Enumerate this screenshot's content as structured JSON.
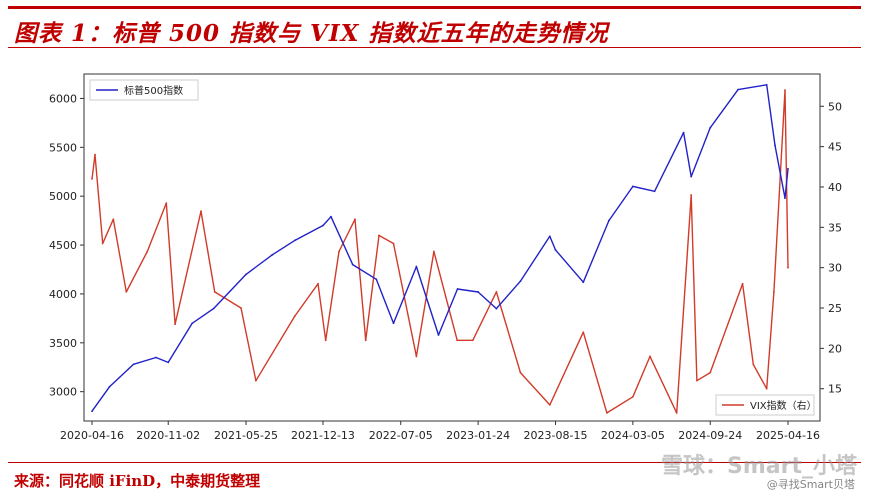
{
  "header": {
    "title": "图表 1：标普 500 指数与 VIX 指数近五年的走势情况"
  },
  "footer": {
    "source": "来源：同花顺 iFinD，中泰期货整理",
    "watermark": "雪球：Smart_小塔",
    "watermark_sub": "@寻找Smart贝塔"
  },
  "colors": {
    "accent": "#c00000",
    "sp500": "#2222c8",
    "vix": "#d13b2a"
  },
  "chart_data": {
    "type": "line",
    "title": "",
    "xlabel": "",
    "ylabel_left": "",
    "ylabel_right": "",
    "x_ticks": [
      "2020-04-16",
      "2020-11-02",
      "2021-05-25",
      "2021-12-13",
      "2022-07-05",
      "2023-01-24",
      "2023-08-15",
      "2024-03-05",
      "2024-09-24",
      "2025-04-16"
    ],
    "y_left": {
      "lim": [
        2700,
        6250
      ],
      "ticks": [
        "3000",
        "3500",
        "4000",
        "4500",
        "5000",
        "5500",
        "6000"
      ]
    },
    "y_right": {
      "lim": [
        11,
        54
      ],
      "ticks": [
        "15",
        "20",
        "25",
        "30",
        "35",
        "40",
        "45",
        "50"
      ]
    },
    "legend": {
      "left_series": "top-left",
      "right_series": "bottom-right"
    },
    "grid": false,
    "series": [
      {
        "name": "标普500指数",
        "axis": "left",
        "x": [
          "2020-04-16",
          "2020-06-01",
          "2020-08-03",
          "2020-10-01",
          "2020-11-02",
          "2021-01-04",
          "2021-03-01",
          "2021-05-25",
          "2021-08-02",
          "2021-10-01",
          "2021-12-13",
          "2022-01-03",
          "2022-03-01",
          "2022-05-02",
          "2022-06-16",
          "2022-08-15",
          "2022-10-12",
          "2022-12-01",
          "2023-01-24",
          "2023-03-13",
          "2023-05-15",
          "2023-07-31",
          "2023-08-15",
          "2023-10-27",
          "2024-01-02",
          "2024-03-05",
          "2024-05-01",
          "2024-07-16",
          "2024-08-05",
          "2024-09-24",
          "2024-12-06",
          "2025-02-19",
          "2025-03-13",
          "2025-04-08",
          "2025-04-16"
        ],
        "values": [
          2800,
          3050,
          3280,
          3350,
          3300,
          3700,
          3850,
          4200,
          4400,
          4550,
          4700,
          4790,
          4300,
          4150,
          3700,
          4280,
          3580,
          4050,
          4020,
          3850,
          4130,
          4590,
          4450,
          4120,
          4750,
          5100,
          5050,
          5650,
          5200,
          5700,
          6090,
          6140,
          5520,
          4980,
          5280
        ]
      },
      {
        "name": "VIX指数（右）",
        "axis": "right",
        "x": [
          "2020-04-16",
          "2020-04-24",
          "2020-05-14",
          "2020-06-11",
          "2020-07-15",
          "2020-09-08",
          "2020-10-28",
          "2020-11-20",
          "2021-01-27",
          "2021-03-04",
          "2021-05-12",
          "2021-06-20",
          "2021-09-30",
          "2021-11-30",
          "2021-12-20",
          "2022-01-24",
          "2022-03-07",
          "2022-04-04",
          "2022-05-09",
          "2022-06-16",
          "2022-08-15",
          "2022-09-30",
          "2022-11-30",
          "2023-01-10",
          "2023-03-13",
          "2023-05-15",
          "2023-07-31",
          "2023-10-27",
          "2023-12-28",
          "2024-03-05",
          "2024-04-19",
          "2024-06-28",
          "2024-08-05",
          "2024-08-20",
          "2024-09-24",
          "2024-12-18",
          "2025-01-15",
          "2025-02-19",
          "2025-03-10",
          "2025-04-08",
          "2025-04-16"
        ],
        "values": [
          41,
          44,
          33,
          36,
          27,
          32,
          38,
          23,
          37,
          27,
          25,
          16,
          24,
          28,
          21,
          32,
          36,
          21,
          34,
          33,
          19,
          32,
          21,
          21,
          27,
          17,
          13,
          22,
          12,
          14,
          19,
          12,
          39,
          16,
          17,
          28,
          18,
          15,
          27,
          52,
          30
        ]
      }
    ]
  }
}
